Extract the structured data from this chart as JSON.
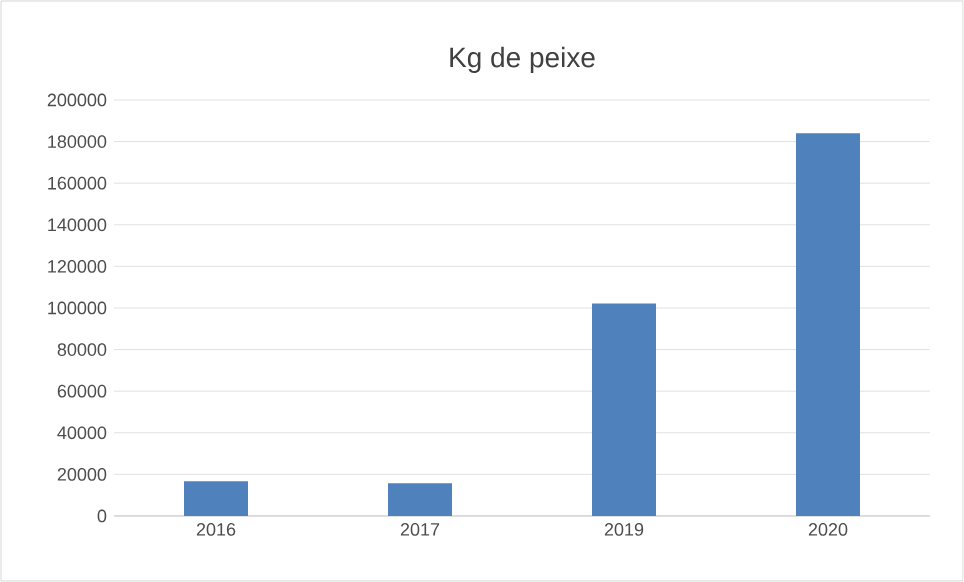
{
  "chart_data": {
    "type": "bar",
    "title": "Kg de peixe",
    "categories": [
      "2016",
      "2017",
      "2019",
      "2020"
    ],
    "values": [
      16700,
      15700,
      102200,
      184000
    ],
    "color": "#4f81bd",
    "ylim": [
      0,
      200000
    ],
    "yticks": [
      0,
      20000,
      40000,
      60000,
      80000,
      100000,
      120000,
      140000,
      160000,
      180000,
      200000
    ],
    "grid": "y"
  }
}
